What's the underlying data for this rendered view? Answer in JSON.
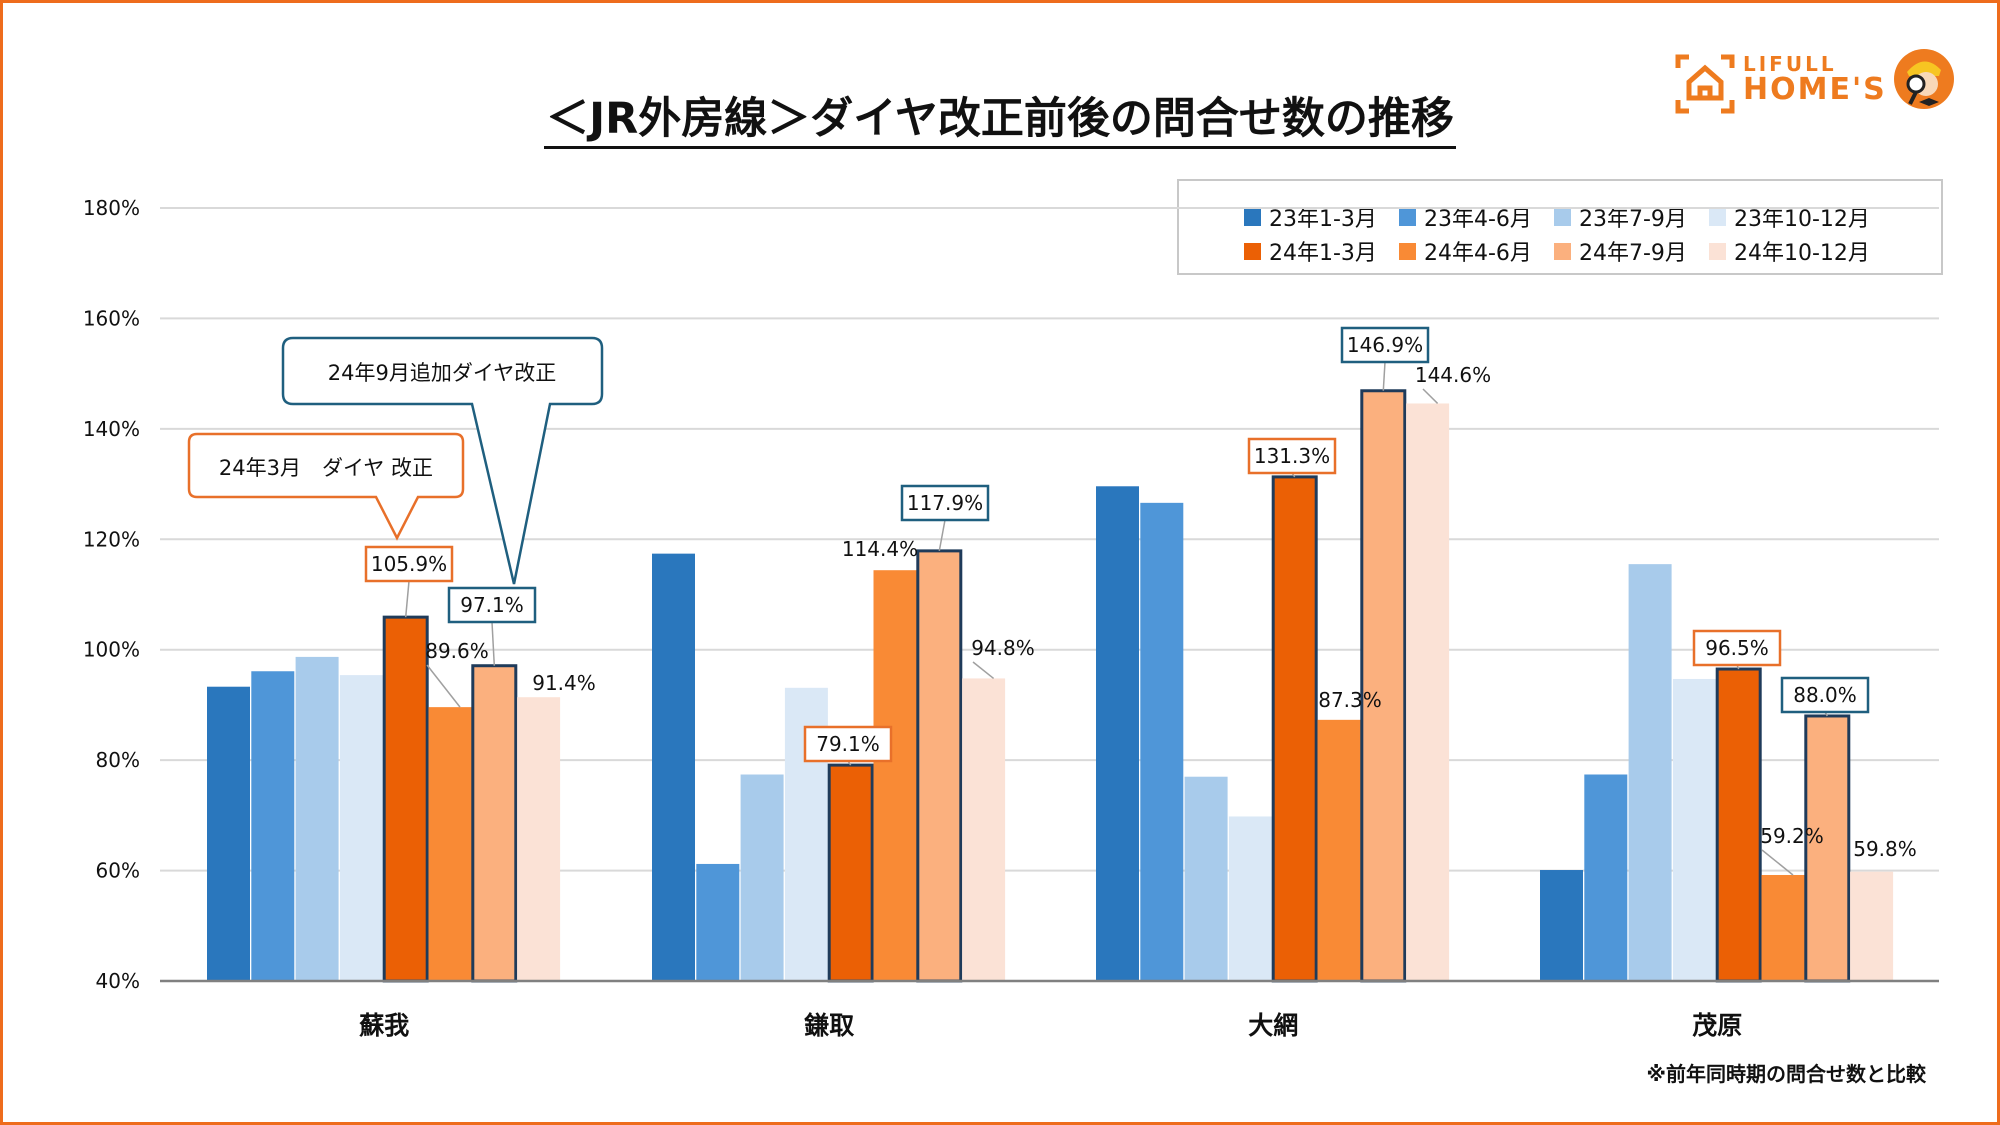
{
  "title": "＜JR外房線＞ダイヤ改正前後の問合せ数の推移",
  "logo": {
    "line1": "LIFULL",
    "line2": "HOME'S"
  },
  "footnote": "※前年同時期の問合せ数と比較",
  "callouts": {
    "march": "24年3月　ダイヤ 改正",
    "september": "24年9月追加ダイヤ改正"
  },
  "colors": {
    "accent": "#ee6c1c",
    "highlight_box_orange": "#e8702a",
    "highlight_box_blue": "#1f5f7f",
    "bar_outline": "#1f3b5a"
  },
  "chart_data": {
    "type": "bar",
    "title": "＜JR外房線＞ダイヤ改正前後の問合せ数の推移",
    "xlabel": "",
    "ylabel": "",
    "ylim": [
      40,
      180
    ],
    "yticks": [
      "40%",
      "60%",
      "80%",
      "100%",
      "120%",
      "140%",
      "160%",
      "180%"
    ],
    "grid": true,
    "legend_position": "top-right",
    "categories": [
      "蘇我",
      "鎌取",
      "大網",
      "茂原"
    ],
    "series": [
      {
        "name": "23年1-3月",
        "color": "#2a77bd",
        "values": [
          93.3,
          117.4,
          129.6,
          60.1
        ],
        "labels": [
          null,
          null,
          null,
          null
        ]
      },
      {
        "name": "23年4-6月",
        "color": "#4f96d8",
        "values": [
          96.1,
          61.2,
          126.6,
          77.4
        ],
        "labels": [
          null,
          null,
          null,
          null
        ]
      },
      {
        "name": "23年7-9月",
        "color": "#a8cbeb",
        "values": [
          98.7,
          77.4,
          77.0,
          115.5
        ],
        "labels": [
          null,
          null,
          null,
          null
        ]
      },
      {
        "name": "23年10-12月",
        "color": "#dae8f6",
        "values": [
          95.4,
          93.1,
          69.8,
          94.7
        ],
        "labels": [
          null,
          null,
          null,
          null
        ]
      },
      {
        "name": "24年1-3月",
        "color": "#eb6005",
        "outlined": true,
        "label_box": "orange",
        "values": [
          105.9,
          79.1,
          131.3,
          96.5
        ],
        "labels": [
          "105.9%",
          "79.1%",
          "131.3%",
          "96.5%"
        ]
      },
      {
        "name": "24年4-6月",
        "color": "#f98a35",
        "values": [
          89.6,
          114.4,
          87.3,
          59.2
        ],
        "labels": [
          "89.6%",
          "114.4%",
          "87.3%",
          "59.2%"
        ]
      },
      {
        "name": "24年7-9月",
        "color": "#fbb07e",
        "outlined": true,
        "label_box": "blue",
        "values": [
          97.1,
          117.9,
          146.9,
          88.0
        ],
        "labels": [
          "97.1%",
          "117.9%",
          "146.9%",
          "88.0%"
        ]
      },
      {
        "name": "24年10-12月",
        "color": "#fbe2d6",
        "values": [
          91.4,
          94.8,
          144.6,
          59.8
        ],
        "labels": [
          "91.4%",
          "94.8%",
          "144.6%",
          "59.8%"
        ]
      }
    ]
  }
}
